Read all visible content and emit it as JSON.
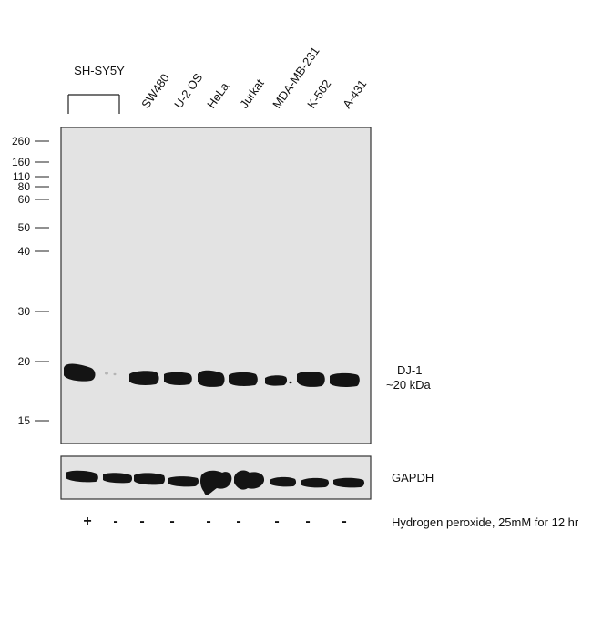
{
  "lanes": [
    {
      "label": "SH-SY5Y",
      "treatment": "+"
    },
    {
      "label": "",
      "treatment": "-"
    },
    {
      "label": "SW480",
      "treatment": "-"
    },
    {
      "label": "U-2 OS",
      "treatment": "-"
    },
    {
      "label": "HeLa",
      "treatment": "-"
    },
    {
      "label": "Jurkat",
      "treatment": "-"
    },
    {
      "label": "MDA-MB-231",
      "treatment": "-"
    },
    {
      "label": "K-562",
      "treatment": "-"
    },
    {
      "label": "A-431",
      "treatment": "-"
    }
  ],
  "markers": [
    "260",
    "160",
    "110",
    "80",
    "60",
    "50",
    "40",
    "30",
    "20",
    "15"
  ],
  "target": {
    "name": "DJ-1",
    "size": "~20 kDa"
  },
  "loading_control": {
    "name": "GAPDH"
  },
  "treatment_label": "Hydrogen peroxide, 25mM for 12 hr",
  "colors": {
    "membrane": "#e3e3e3",
    "band": "#141414",
    "frame": "#333333"
  }
}
